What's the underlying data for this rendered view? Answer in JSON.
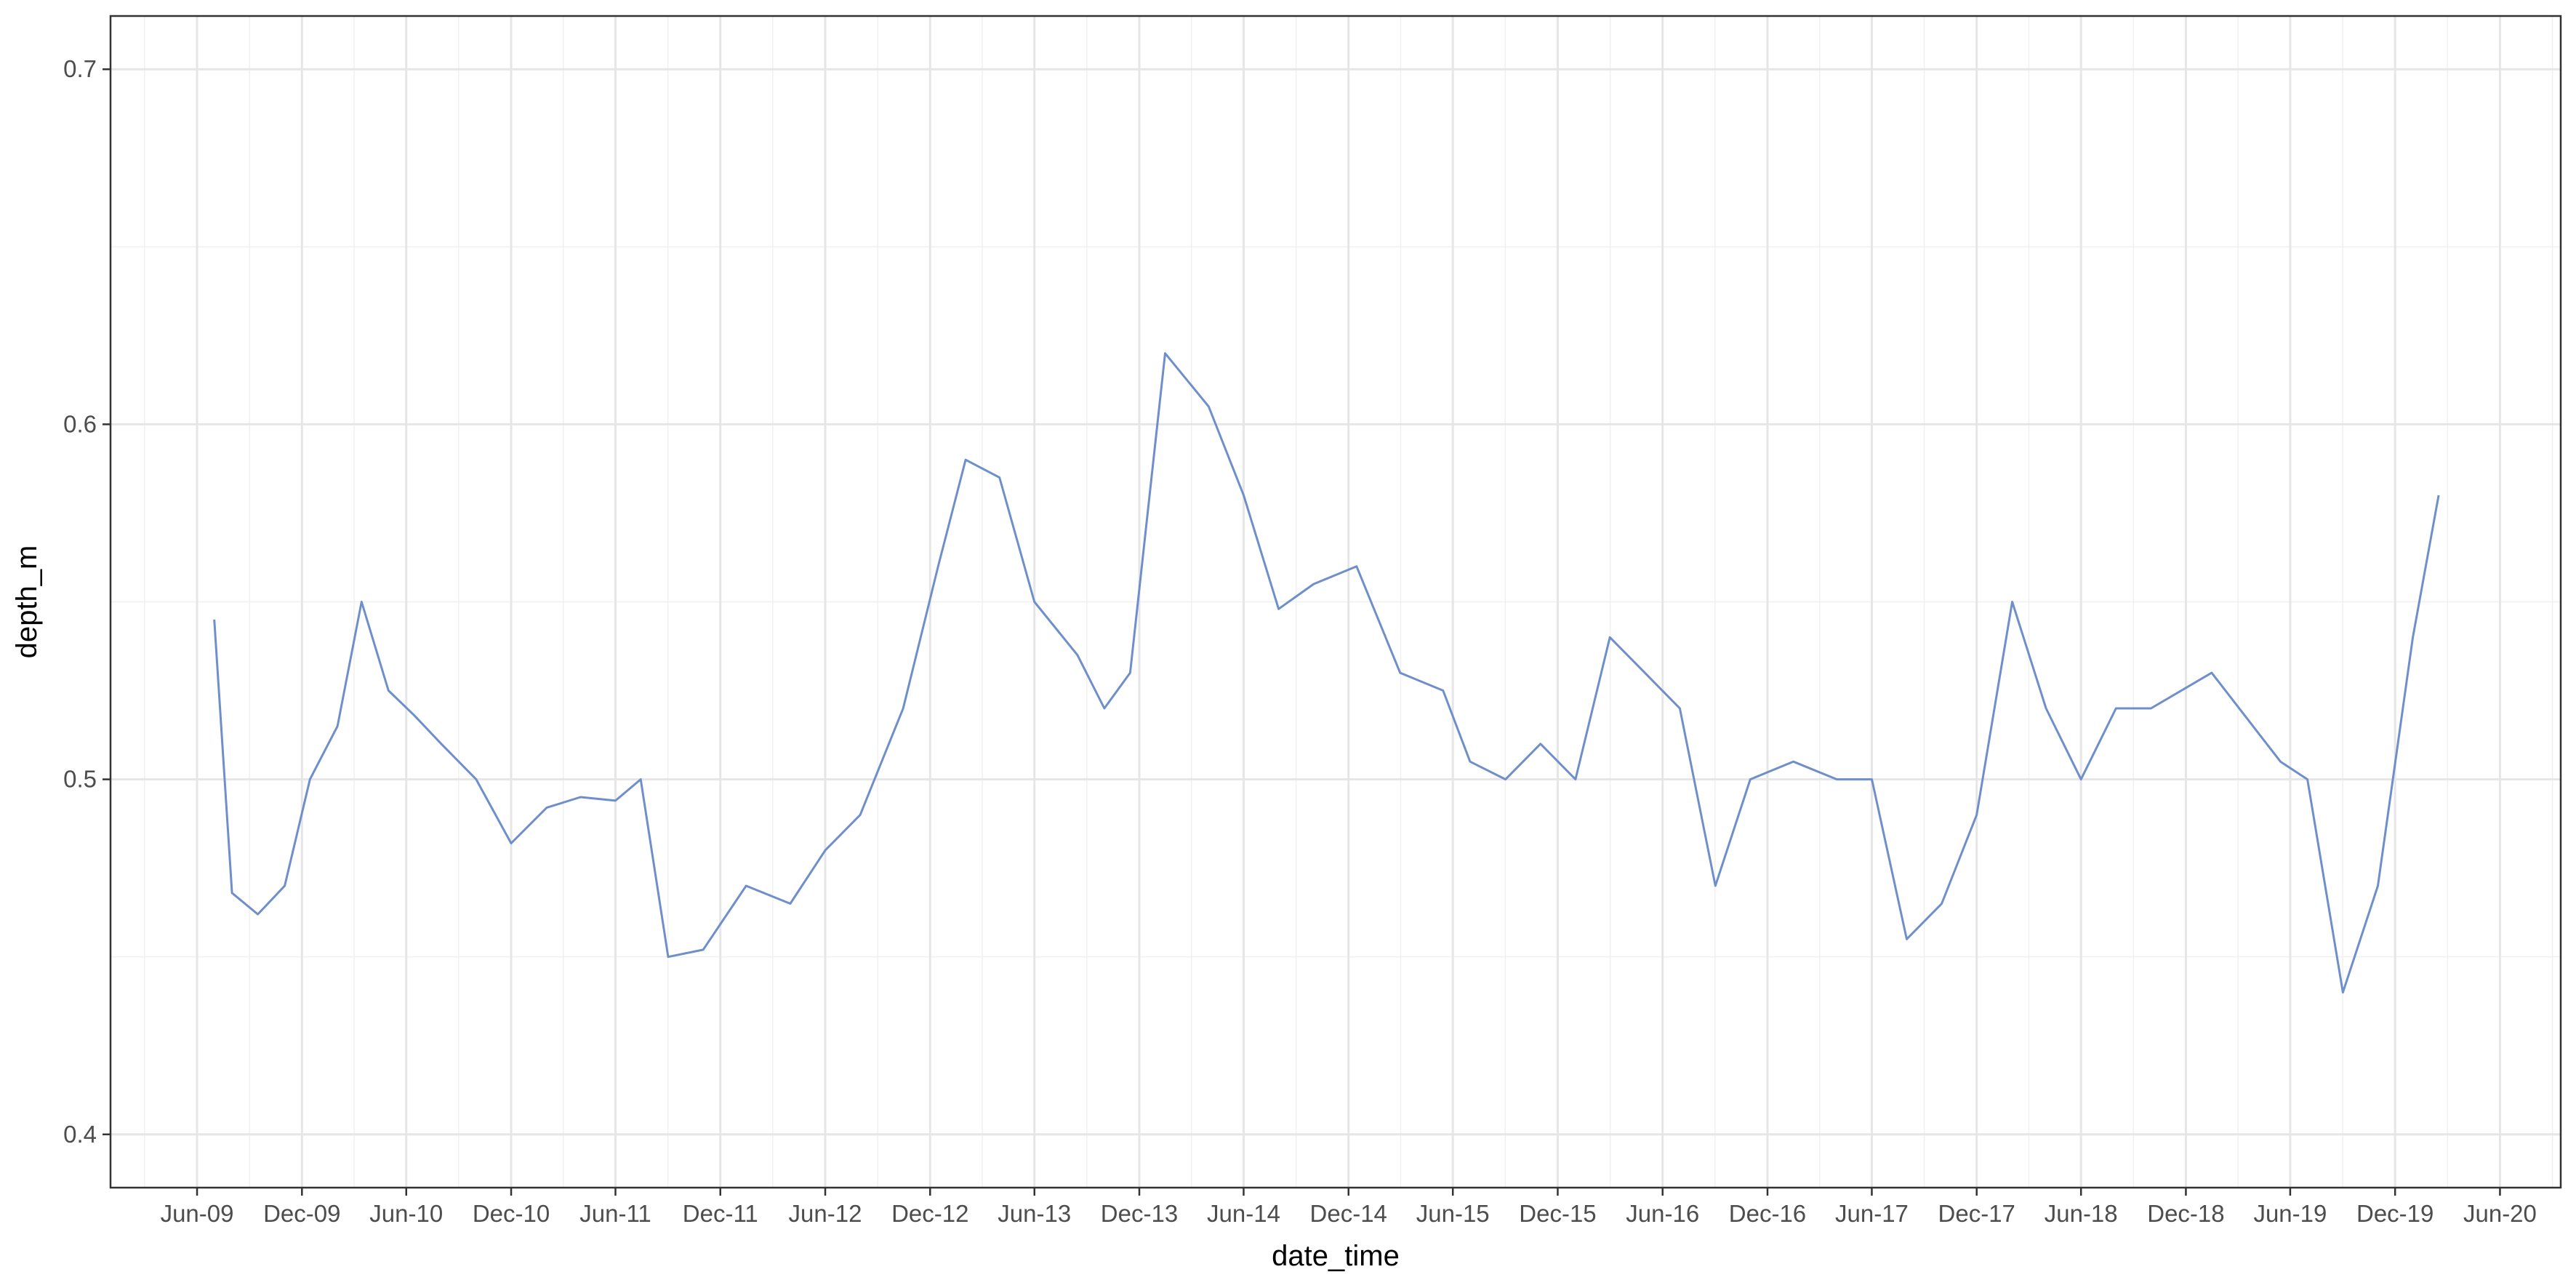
{
  "chart_data": {
    "type": "line",
    "title": "",
    "xlabel": "date_time",
    "ylabel": "depth_m",
    "x_ticks": [
      "Jun-09",
      "Dec-09",
      "Jun-10",
      "Dec-10",
      "Jun-11",
      "Dec-11",
      "Jun-12",
      "Dec-12",
      "Jun-13",
      "Dec-13",
      "Jun-14",
      "Dec-14",
      "Jun-15",
      "Dec-15",
      "Jun-16",
      "Dec-16",
      "Jun-17",
      "Dec-17",
      "Jun-18",
      "Dec-18",
      "Jun-19",
      "Dec-19",
      "Jun-20"
    ],
    "y_ticks": [
      "0.4",
      "0.5",
      "0.6",
      "0.7"
    ],
    "xlim": [
      "2009-01-01",
      "2020-09-15"
    ],
    "ylim": [
      0.385,
      0.715
    ],
    "grid": true,
    "legend": "none",
    "line_color": "#6F8FCB",
    "series": [
      {
        "x": [
          "2009-07-01",
          "2009-08-01",
          "2009-09-15",
          "2009-11-01",
          "2009-12-15",
          "2010-02-01",
          "2010-03-15",
          "2010-05-01",
          "2010-06-15",
          "2010-08-01",
          "2010-10-01",
          "2010-12-01",
          "2011-02-01",
          "2011-04-01",
          "2011-06-01",
          "2011-07-15",
          "2011-09-01",
          "2011-11-01",
          "2012-01-15",
          "2012-04-01",
          "2012-06-01",
          "2012-08-01",
          "2012-10-15",
          "2012-12-15",
          "2013-02-01",
          "2013-04-01",
          "2013-06-01",
          "2013-08-15",
          "2013-10-01",
          "2013-11-15",
          "2014-01-15",
          "2014-04-01",
          "2014-06-01",
          "2014-08-01",
          "2014-10-01",
          "2014-12-15",
          "2015-03-01",
          "2015-05-15",
          "2015-07-01",
          "2015-09-01",
          "2015-11-01",
          "2016-01-01",
          "2016-03-01",
          "2016-05-01",
          "2016-07-01",
          "2016-09-01",
          "2016-11-01",
          "2017-01-15",
          "2017-04-01",
          "2017-06-01",
          "2017-08-01",
          "2017-10-01",
          "2017-12-01",
          "2018-02-01",
          "2018-04-01",
          "2018-06-01",
          "2018-08-01",
          "2018-10-01",
          "2019-01-15",
          "2019-05-15",
          "2019-07-01",
          "2019-09-01",
          "2019-11-01",
          "2020-01-01",
          "2020-02-15"
        ],
        "y": [
          0.545,
          0.468,
          0.462,
          0.47,
          0.5,
          0.515,
          0.55,
          0.525,
          0.518,
          0.51,
          0.5,
          0.482,
          0.492,
          0.495,
          0.494,
          0.5,
          0.45,
          0.452,
          0.47,
          0.465,
          0.48,
          0.49,
          0.52,
          0.56,
          0.59,
          0.585,
          0.55,
          0.535,
          0.52,
          0.53,
          0.62,
          0.605,
          0.58,
          0.548,
          0.555,
          0.56,
          0.53,
          0.525,
          0.505,
          0.5,
          0.51,
          0.5,
          0.54,
          0.53,
          0.52,
          0.47,
          0.5,
          0.505,
          0.5,
          0.5,
          0.455,
          0.465,
          0.49,
          0.55,
          0.52,
          0.5,
          0.52,
          0.52,
          0.53,
          0.505,
          0.5,
          0.44,
          0.47,
          0.54,
          0.58
        ]
      }
    ]
  }
}
